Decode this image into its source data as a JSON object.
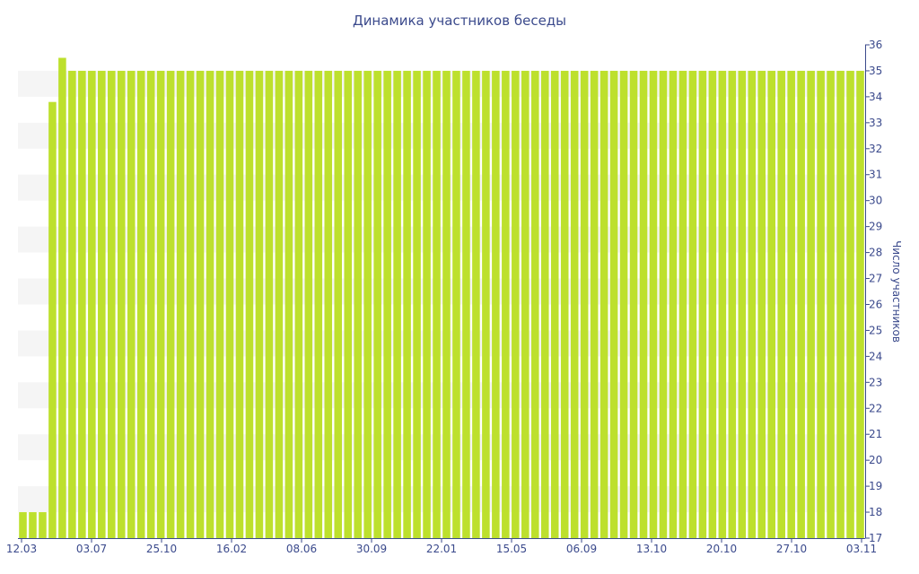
{
  "chart_data": {
    "type": "bar",
    "title": "Динамика участников беседы",
    "ylabel": "Число участников",
    "xlabel": "",
    "ylim": [
      17,
      36
    ],
    "y_ticks": [
      17,
      18,
      19,
      20,
      21,
      22,
      23,
      24,
      25,
      26,
      27,
      28,
      29,
      30,
      31,
      32,
      33,
      34,
      35,
      36
    ],
    "x_tick_labels": [
      "12.03",
      "03.07",
      "25.10",
      "16.02",
      "08.06",
      "30.09",
      "22.01",
      "15.05",
      "06.09",
      "13.10",
      "20.10",
      "27.10",
      "03.11"
    ],
    "bar_color": "#bde02d",
    "band_color": "#f5f5f5",
    "values": [
      18,
      18,
      18,
      33.8,
      35.5,
      35,
      35,
      35,
      35,
      35,
      35,
      35,
      35,
      35,
      35,
      35,
      35,
      35,
      35,
      35,
      35,
      35,
      35,
      35,
      35,
      35,
      35,
      35,
      35,
      35,
      35,
      35,
      35,
      35,
      35,
      35,
      35,
      35,
      35,
      35,
      35,
      35,
      35,
      35,
      35,
      35,
      35,
      35,
      35,
      35,
      35,
      35,
      35,
      35,
      35,
      35,
      35,
      35,
      35,
      35,
      35,
      35,
      35,
      35,
      35,
      35,
      35,
      35,
      35,
      35,
      35,
      35,
      35,
      35,
      35,
      35,
      35,
      35,
      35,
      35,
      35,
      35,
      35,
      35,
      35,
      35
    ]
  }
}
